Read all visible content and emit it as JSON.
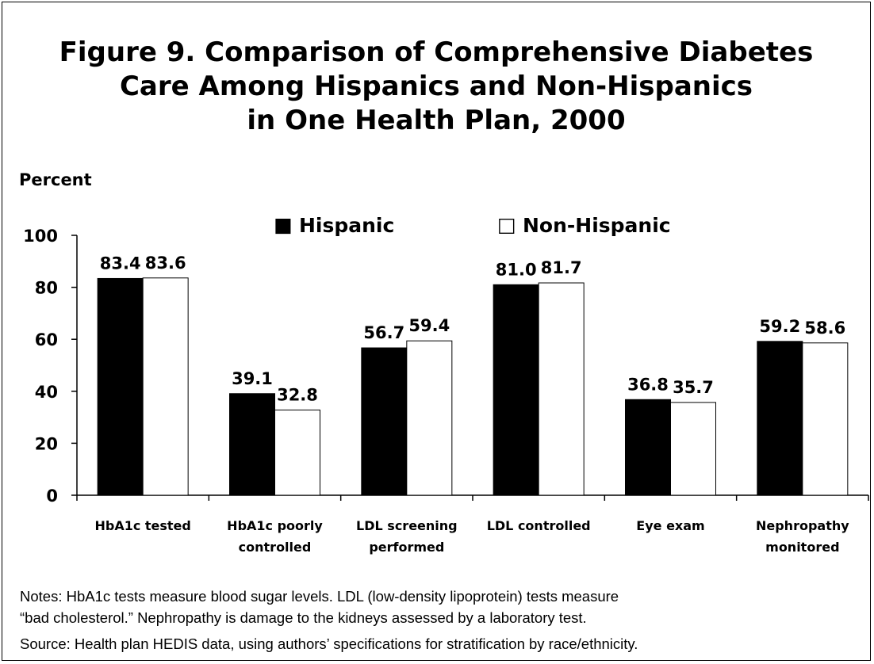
{
  "chart_data": {
    "type": "bar",
    "title_lines": [
      "Figure 9. Comparison of Comprehensive Diabetes",
      "Care Among Hispanics and Non-Hispanics",
      "in One Health Plan, 2000"
    ],
    "ylabel": "Percent",
    "ylim": [
      0,
      100
    ],
    "yticks": [
      0,
      20,
      40,
      60,
      80,
      100
    ],
    "categories": [
      [
        "HbA1c tested"
      ],
      [
        "HbA1c poorly",
        "controlled"
      ],
      [
        "LDL screening",
        "performed"
      ],
      [
        "LDL controlled"
      ],
      [
        "Eye exam"
      ],
      [
        "Nephropathy",
        "monitored"
      ]
    ],
    "series": [
      {
        "name": "Hispanic",
        "color": "#000000",
        "values": [
          83.4,
          39.1,
          56.7,
          81.0,
          36.8,
          59.2
        ],
        "labels": [
          "83.4",
          "39.1",
          "56.7",
          "81.0",
          "36.8",
          "59.2"
        ]
      },
      {
        "name": "Non-Hispanic",
        "color": "#ffffff",
        "values": [
          83.6,
          32.8,
          59.4,
          81.7,
          35.7,
          58.6
        ],
        "labels": [
          "83.6",
          "32.8",
          "59.4",
          "81.7",
          "35.7",
          "58.6"
        ]
      }
    ],
    "legend": {
      "placement": "top",
      "symbols": [
        "■",
        "□"
      ]
    },
    "grid": false
  },
  "notes": {
    "line1": "Notes: HbA1c tests measure blood sugar levels. LDL (low-density lipoprotein) tests measure",
    "line2": "“bad cholesterol.” Nephropathy is damage to the kidneys assessed by a laboratory test.",
    "source": "Source: Health plan HEDIS data, using authors’ specifications for stratification by race/ethnicity."
  }
}
